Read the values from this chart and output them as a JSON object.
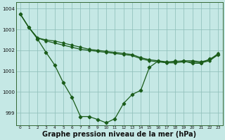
{
  "background_color": "#c5e8e5",
  "grid_color_v": "#8fbfba",
  "grid_color_h": "#8fbfba",
  "line_color": "#1a5c1a",
  "xlabel": "Graphe pression niveau de la mer (hPa)",
  "xlabel_fontsize": 7.0,
  "ylim": [
    998.4,
    1004.3
  ],
  "xlim": [
    -0.5,
    23.5
  ],
  "yticks": [
    999,
    1000,
    1001,
    1002,
    1003,
    1004
  ],
  "xticks": [
    0,
    1,
    2,
    3,
    4,
    5,
    6,
    7,
    8,
    9,
    10,
    11,
    12,
    13,
    14,
    15,
    16,
    17,
    18,
    19,
    20,
    21,
    22,
    23
  ],
  "hours": [
    0,
    1,
    2,
    3,
    4,
    5,
    6,
    7,
    8,
    9,
    10,
    11,
    12,
    13,
    14,
    15,
    16,
    17,
    18,
    19,
    20,
    21,
    22,
    23
  ],
  "line1": [
    1003.75,
    1003.1,
    1002.6,
    1002.5,
    1002.45,
    1002.35,
    1002.25,
    1002.15,
    1002.05,
    1002.0,
    1001.95,
    1001.9,
    1001.85,
    1001.8,
    1001.65,
    1001.55,
    1001.5,
    1001.45,
    1001.45,
    1001.5,
    1001.5,
    1001.45,
    1001.55,
    1001.85
  ],
  "line2": [
    1003.75,
    1003.1,
    1002.6,
    1002.45,
    1002.35,
    1002.25,
    1002.15,
    1002.05,
    1002.0,
    1001.95,
    1001.9,
    1001.85,
    1001.8,
    1001.75,
    1001.6,
    1001.5,
    1001.45,
    1001.4,
    1001.4,
    1001.45,
    1001.45,
    1001.4,
    1001.5,
    1001.8
  ],
  "line3": [
    1003.75,
    1003.1,
    1002.55,
    1001.9,
    1001.3,
    1000.45,
    999.75,
    998.82,
    998.82,
    998.68,
    998.52,
    998.72,
    999.45,
    999.88,
    1000.08,
    1001.18,
    1001.48,
    1001.42,
    1001.48,
    1001.48,
    1001.38,
    1001.38,
    1001.58,
    1001.78
  ]
}
